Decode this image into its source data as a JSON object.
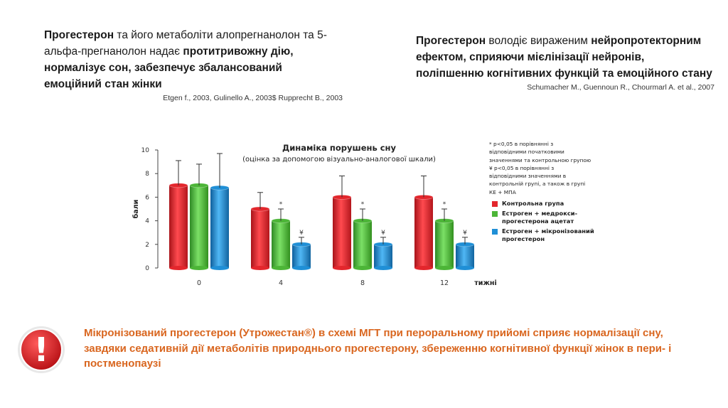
{
  "left_block": {
    "p1": "Прогестерон",
    "p2": " та його метаболіти алопрегнанолон та 5-альфа-прегнанолон надає ",
    "p3": "протитривожну дію, нормалізує сон, забезпечує збалансований емоційний стан жінки",
    "citation": "Etgen f., 2003, Gulinello A., 2003$ Rupprecht B., 2003"
  },
  "right_block": {
    "p1": "Прогестерон",
    "p2": " володіє вираженим ",
    "p3": "нейропротекторним ефектом, сприяючи мієлінізації нейронів, поліпшенню когнітивних функцій та емоційного стану",
    "citation": "Schumacher M., Guennoun R., Chourmarl A. et al., 2007"
  },
  "chart_data": {
    "type": "bar",
    "title": "Динаміка порушень сну",
    "subtitle": "(оцінка за допомогою візуально-аналогової шкали)",
    "xlabel": "тижні",
    "ylabel": "бали",
    "ylim": [
      0,
      10
    ],
    "yticks": [
      "0",
      "2",
      "4",
      "6",
      "8",
      "10"
    ],
    "categories": [
      "0",
      "4",
      "8",
      "12"
    ],
    "series": [
      {
        "name": "Контрольна група",
        "color": "#e3262c",
        "values": [
          7.0,
          5.0,
          6.0,
          6.0
        ],
        "errors": [
          2.1,
          1.4,
          1.8,
          1.8
        ],
        "markers": [
          "",
          "",
          "",
          ""
        ]
      },
      {
        "name": "Естроген + медрокси-прогестерона ацетат",
        "color": "#4cb537",
        "values": [
          7.0,
          4.0,
          4.0,
          4.0
        ],
        "errors": [
          1.8,
          1.0,
          1.0,
          1.0
        ],
        "markers": [
          "",
          "*",
          "*",
          "*"
        ]
      },
      {
        "name": "Естроген + мікронізований прогестерон",
        "color": "#1f8fd6",
        "values": [
          6.8,
          2.0,
          2.0,
          2.0
        ],
        "errors": [
          2.9,
          0.6,
          0.6,
          0.6
        ],
        "markers": [
          "",
          "¥",
          "¥",
          "¥"
        ]
      }
    ]
  },
  "legend": {
    "notes": [
      "* р<0,05 в порівнянні з",
      "відповідними початковими",
      "значеннями та контрольною групою",
      "¥ р<0,05 в порівнянні з",
      "відповідними значеннями в",
      "контрольній групі, а також в групі",
      "КЕ + МПА"
    ],
    "items": [
      {
        "label": "Контрольна група",
        "color": "#e3262c"
      },
      {
        "label": "Естроген + медрокси-прогестерона ацетат",
        "color": "#4cb537"
      },
      {
        "label": "Естроген + мікронізований прогестерон",
        "color": "#1f8fd6"
      }
    ]
  },
  "alert": {
    "symbol": "!",
    "color": "#e01f26"
  },
  "conclusion": "Мікронізований прогестерон (Утрожестан®) в схемі МГТ при пероральному прийомі сприяє нормалізації сну, завдяки седативній дії метаболітів природнього прогестерону,  збереженню когнітивної функції жінок в пери- і постменопаузі"
}
